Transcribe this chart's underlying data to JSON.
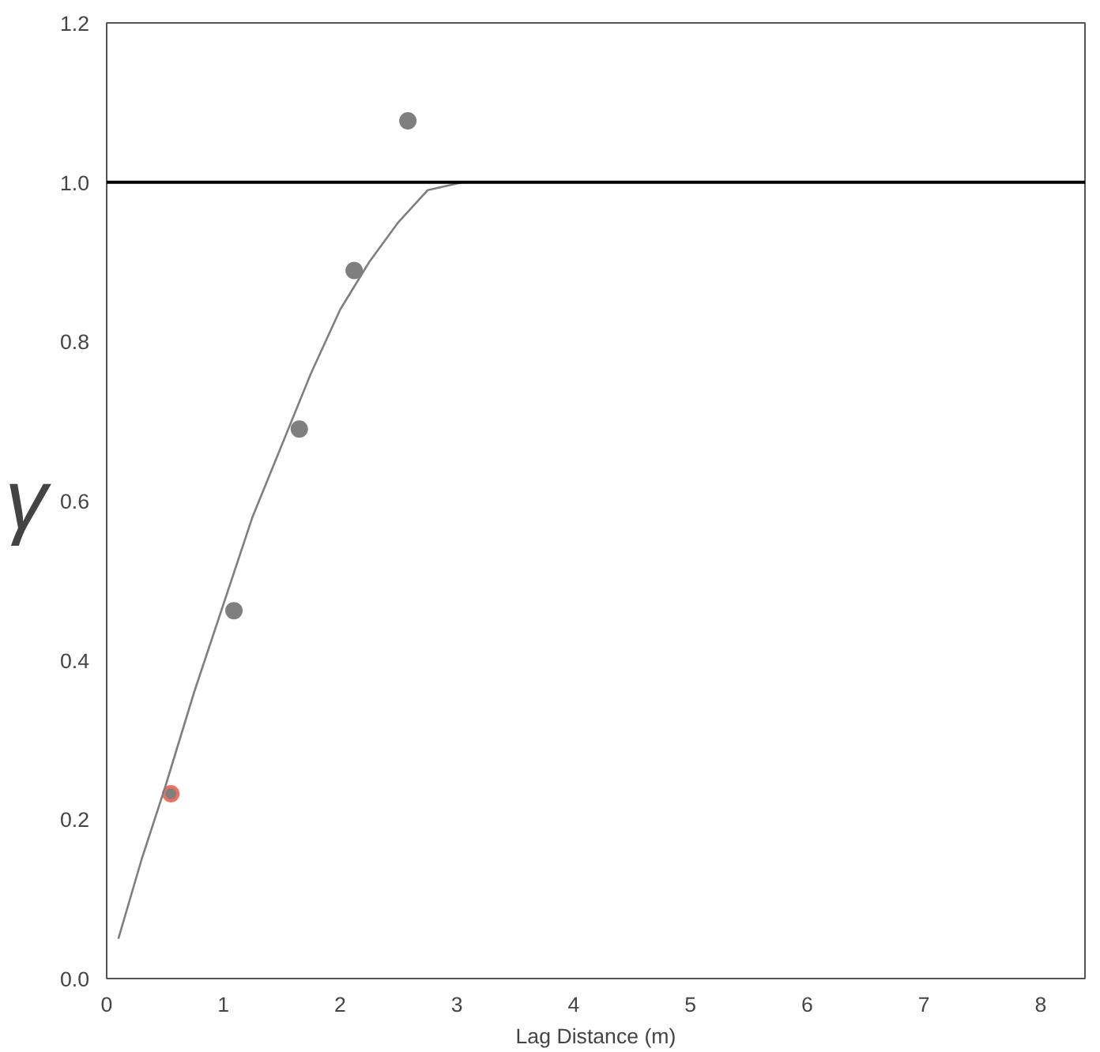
{
  "chart_data": {
    "type": "scatter",
    "xlabel": "Lag Distance (m)",
    "ylabel": "γ",
    "xlim": [
      0,
      8.38
    ],
    "ylim": [
      0,
      1.2
    ],
    "xticks": [
      0,
      1,
      2,
      3,
      4,
      5,
      6,
      7,
      8
    ],
    "yticks": [
      {
        "value": 0,
        "label": "0.0"
      },
      {
        "value": 0.2,
        "label": "0.2"
      },
      {
        "value": 0.4,
        "label": "0.4"
      },
      {
        "value": 0.6,
        "label": "0.6"
      },
      {
        "value": 0.8,
        "label": "0.8"
      },
      {
        "value": 1.0,
        "label": "1.0"
      },
      {
        "value": 1.2,
        "label": "1.2"
      }
    ],
    "grid": false,
    "series": [
      {
        "marker": "circle",
        "color": "#7f7f7f",
        "x": [
          0.55,
          1.09,
          1.65,
          2.12,
          2.58
        ],
        "values": [
          0.232,
          0.462,
          0.69,
          0.889,
          1.077
        ],
        "colors": [
          "#f07060",
          "#7f7f7f",
          "#7f7f7f",
          "#7f7f7f",
          "#7f7f7f"
        ]
      },
      {
        "type": "line",
        "color": "#7f7f7f",
        "line_style": "solid",
        "x": [
          0.1,
          0.3,
          0.5,
          0.75,
          1.0,
          1.25,
          1.5,
          1.75,
          2.0,
          2.25,
          2.5,
          2.75,
          3.05
        ],
        "values": [
          0.05,
          0.15,
          0.24,
          0.36,
          0.47,
          0.58,
          0.67,
          0.76,
          0.84,
          0.9,
          0.95,
          0.99,
          1.0
        ]
      }
    ],
    "ref_lines": [
      {
        "axis": "y",
        "value": 1.0,
        "color": "#000000",
        "line_style": "solid"
      }
    ]
  }
}
